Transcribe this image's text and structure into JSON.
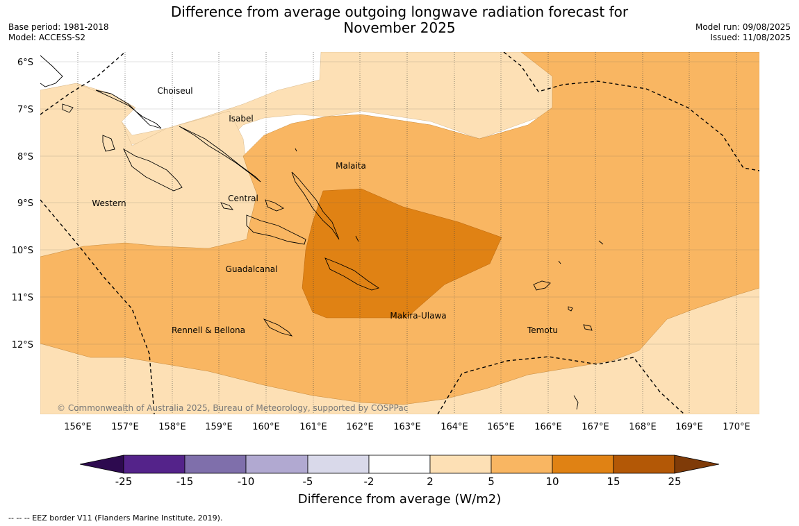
{
  "title_line1": "Difference from average outgoing longwave radiation forecast for",
  "title_line2": "November 2025",
  "base_period": "Base period: 1981-2018",
  "model": "Model: ACCESS-S2",
  "model_run": "Model run: 09/08/2025",
  "issued": "Issued: 11/08/2025",
  "copyright": "© Commonwealth of Australia 2025, Bureau of Meteorology, supported by COSPPac",
  "lat_labels": [
    "6°S",
    "7°S",
    "8°S",
    "9°S",
    "10°S",
    "11°S",
    "12°S"
  ],
  "lon_labels": [
    "156°E",
    "157°E",
    "158°E",
    "159°E",
    "160°E",
    "161°E",
    "162°E",
    "163°E",
    "164°E",
    "165°E",
    "166°E",
    "167°E",
    "168°E",
    "169°E",
    "170°E"
  ],
  "regions": [
    "Choiseul",
    "Isabel",
    "Malaita",
    "Western",
    "Central",
    "Guadalcanal",
    "Makira-Ulawa",
    "Rennell & Bellona",
    "Temotu"
  ],
  "colorbar": {
    "ticks": [
      "-25",
      "-15",
      "-10",
      "-5",
      "-2",
      "2",
      "5",
      "10",
      "15",
      "25"
    ],
    "colors": [
      "#2d0a4f",
      "#54238a",
      "#7f6fab",
      "#b1a9d1",
      "#d9d9ea",
      "#ffffff",
      "#fde0b5",
      "#f9b662",
      "#e08214",
      "#b35806",
      "#7f3b08"
    ],
    "title": "Difference from average (W/m2)"
  },
  "legend_note": "--  --  -- EEZ border V11 (Flanders Marine Institute, 2019)."
}
